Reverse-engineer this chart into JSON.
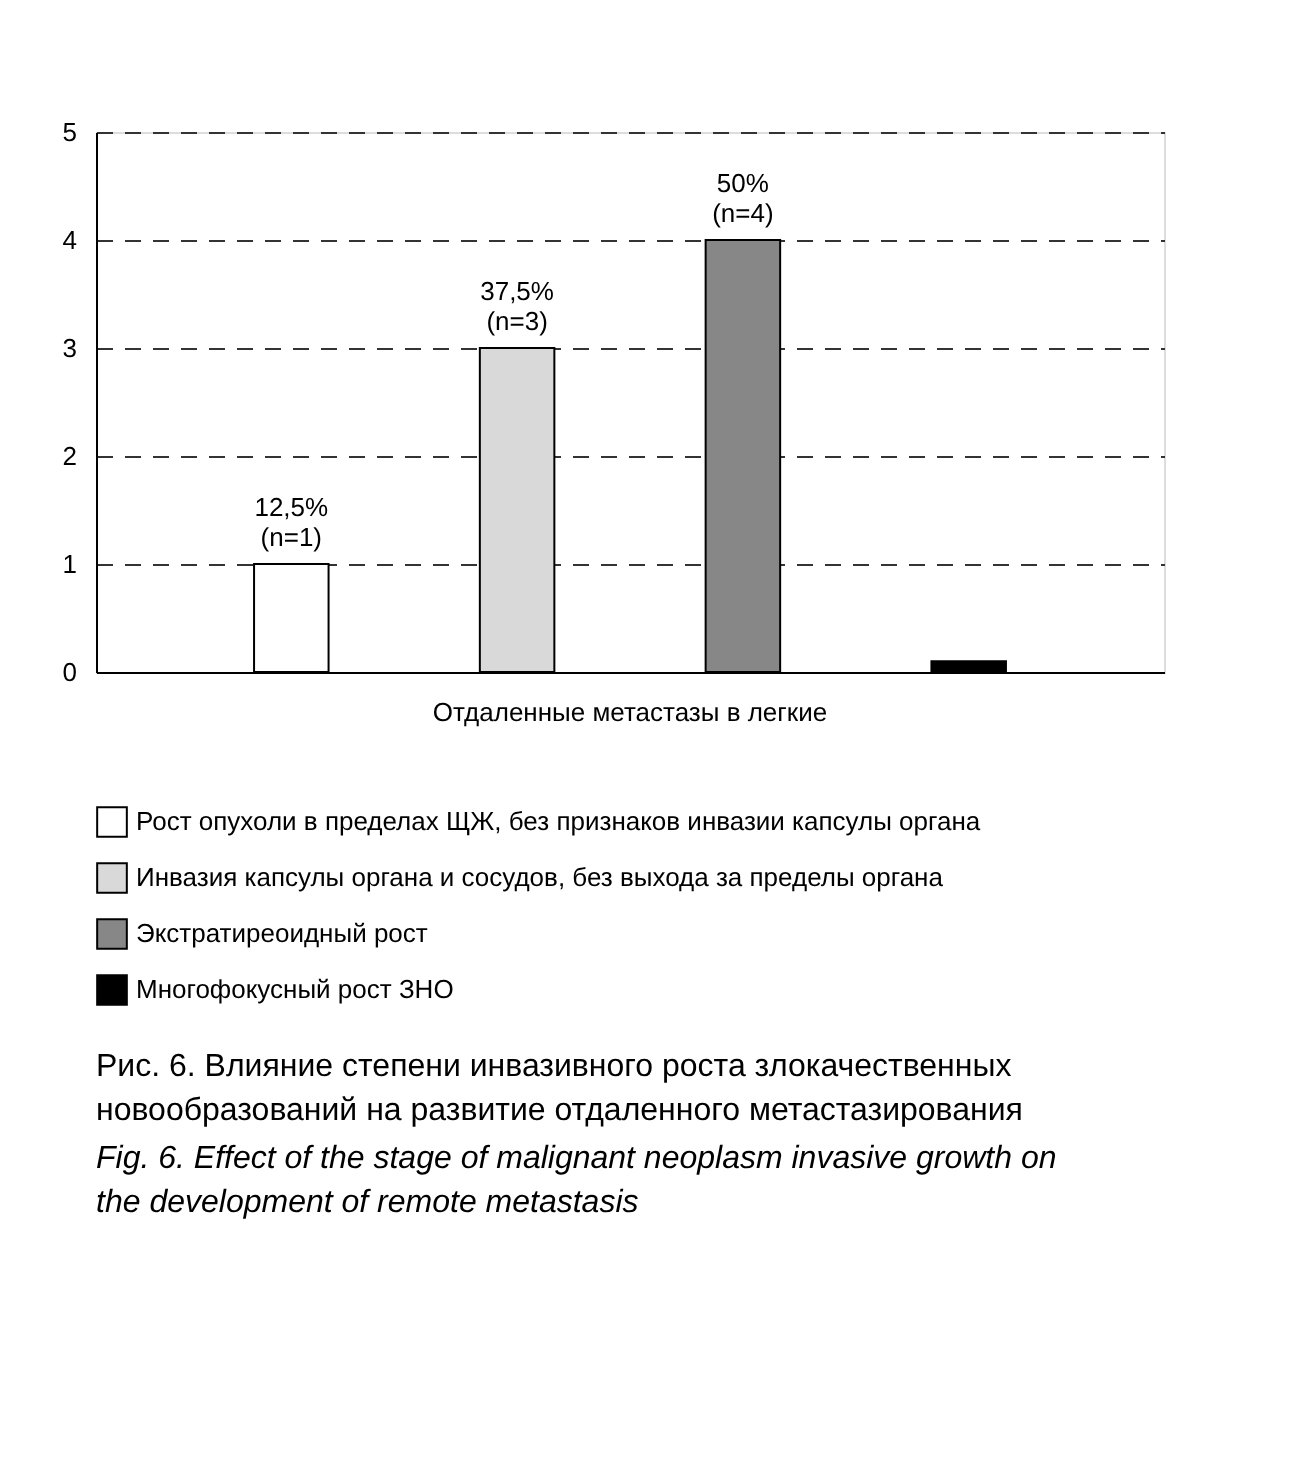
{
  "chart_data": {
    "type": "bar",
    "title": "Рис. 6. Влияние степени инвазивного роста злокачественных новообразований на развитие отдаленного метастазирования",
    "subtitle": "Fig. 6. Effect of the stage of malignant neoplasm invasive growth on the development of remote metastasis",
    "categories": [
      "Отдаленные метастазы в легкие"
    ],
    "series": [
      {
        "name": "Рост опухоли в пределах ЩЖ, без признаков инвазии капсулы органа",
        "color": "#ffffff",
        "values": [
          1
        ],
        "value_labels": [
          "12,5%\n(n=1)"
        ]
      },
      {
        "name": "Инвазия капсулы органа и сосудов, без выхода за пределы органа",
        "color": "#d9d9d9",
        "values": [
          3
        ],
        "value_labels": [
          "37,5%\n(n=3)"
        ]
      },
      {
        "name": "Экстратиреоидный рост",
        "color": "#878787",
        "values": [
          4
        ],
        "value_labels": [
          "50%\n(n=4)"
        ]
      },
      {
        "name": "Многофокусный рост ЗНО",
        "color": "#000000",
        "values": [
          0.1
        ],
        "value_labels": [
          null
        ]
      }
    ],
    "ylim": [
      0,
      5
    ],
    "yticks": [
      0,
      1,
      2,
      3,
      4,
      5
    ],
    "grid": "y",
    "legend": "bottom"
  }
}
